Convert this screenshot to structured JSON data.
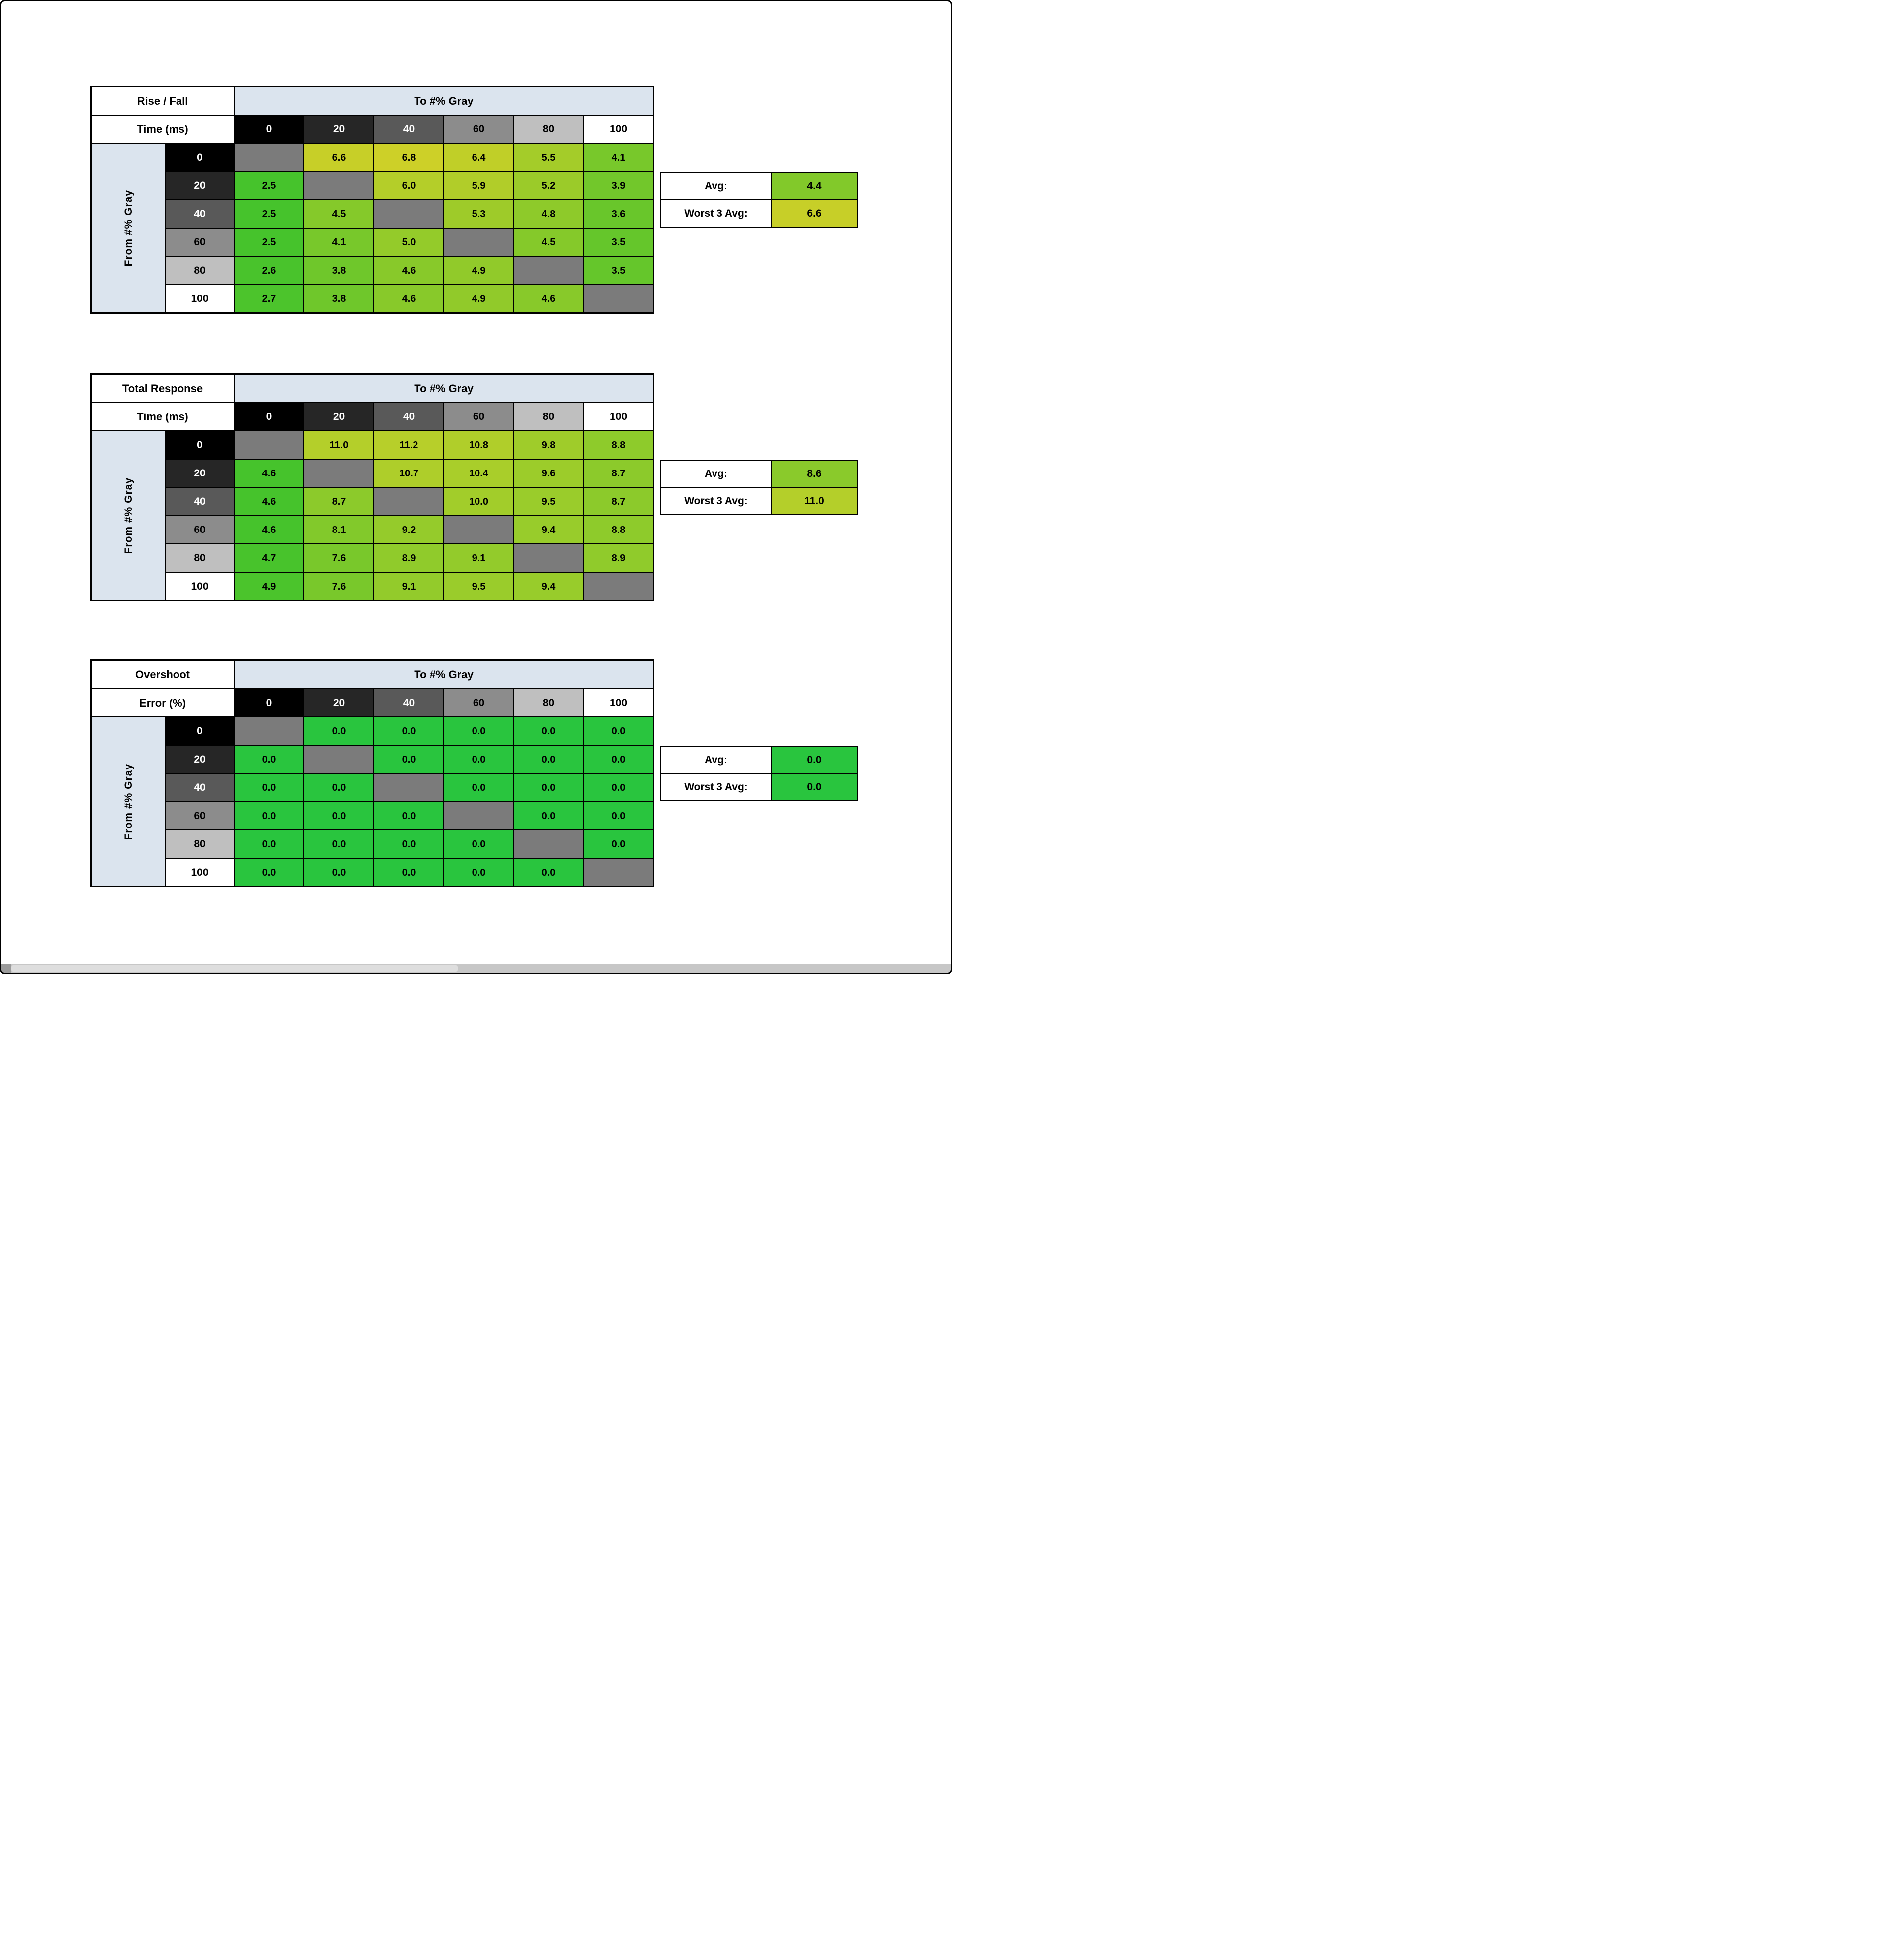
{
  "style": {
    "page_bg": "#ffffff",
    "grid_color": "#000000",
    "band_bg": "#dbe4ee",
    "diagonal_bg": "#7b7b7b",
    "level_colors": [
      "#000000",
      "#262626",
      "#595959",
      "#8c8c8c",
      "#bfbfbf",
      "#ffffff"
    ],
    "level_text_colors": [
      "#ffffff",
      "#ffffff",
      "#ffffff",
      "#000000",
      "#000000",
      "#000000"
    ]
  },
  "chart_data": [
    {
      "type": "heatmap",
      "title": [
        "Rise / Fall",
        "Time (ms)"
      ],
      "col_axis_label": "To #% Gray",
      "row_axis_label": "From #% Gray",
      "columns": [
        "0",
        "20",
        "40",
        "60",
        "80",
        "100"
      ],
      "rows": [
        "0",
        "20",
        "40",
        "60",
        "80",
        "100"
      ],
      "values": [
        [
          null,
          "6.6",
          "6.8",
          "6.4",
          "5.5",
          "4.1"
        ],
        [
          "2.5",
          null,
          "6.0",
          "5.9",
          "5.2",
          "3.9"
        ],
        [
          "2.5",
          "4.5",
          null,
          "5.3",
          "4.8",
          "3.6"
        ],
        [
          "2.5",
          "4.1",
          "5.0",
          null,
          "4.5",
          "3.5"
        ],
        [
          "2.6",
          "3.8",
          "4.6",
          "4.9",
          null,
          "3.5"
        ],
        [
          "2.7",
          "3.8",
          "4.6",
          "4.9",
          "4.6",
          null
        ]
      ],
      "avg_label": "Avg:",
      "avg": "4.4",
      "worst3_label": "Worst 3 Avg:",
      "worst3": "6.6",
      "color_scale": {
        "min": 2.5,
        "max": 6.8,
        "from": "#46c32c",
        "to": "#cdd028"
      }
    },
    {
      "type": "heatmap",
      "title": [
        "Total Response",
        "Time (ms)"
      ],
      "col_axis_label": "To #% Gray",
      "row_axis_label": "From #% Gray",
      "columns": [
        "0",
        "20",
        "40",
        "60",
        "80",
        "100"
      ],
      "rows": [
        "0",
        "20",
        "40",
        "60",
        "80",
        "100"
      ],
      "values": [
        [
          null,
          "11.0",
          "11.2",
          "10.8",
          "9.8",
          "8.8"
        ],
        [
          "4.6",
          null,
          "10.7",
          "10.4",
          "9.6",
          "8.7"
        ],
        [
          "4.6",
          "8.7",
          null,
          "10.0",
          "9.5",
          "8.7"
        ],
        [
          "4.6",
          "8.1",
          "9.2",
          null,
          "9.4",
          "8.8"
        ],
        [
          "4.7",
          "7.6",
          "8.9",
          "9.1",
          null,
          "8.9"
        ],
        [
          "4.9",
          "7.6",
          "9.1",
          "9.5",
          "9.4",
          null
        ]
      ],
      "avg_label": "Avg:",
      "avg": "8.6",
      "worst3_label": "Worst 3 Avg:",
      "worst3": "11.0",
      "color_scale": {
        "min": 4.6,
        "max": 11.2,
        "from": "#46c32c",
        "to": "#b7cf2a"
      }
    },
    {
      "type": "heatmap",
      "title": [
        "Overshoot",
        "Error (%)"
      ],
      "col_axis_label": "To #% Gray",
      "row_axis_label": "From #% Gray",
      "columns": [
        "0",
        "20",
        "40",
        "60",
        "80",
        "100"
      ],
      "rows": [
        "0",
        "20",
        "40",
        "60",
        "80",
        "100"
      ],
      "values": [
        [
          null,
          "0.0",
          "0.0",
          "0.0",
          "0.0",
          "0.0"
        ],
        [
          "0.0",
          null,
          "0.0",
          "0.0",
          "0.0",
          "0.0"
        ],
        [
          "0.0",
          "0.0",
          null,
          "0.0",
          "0.0",
          "0.0"
        ],
        [
          "0.0",
          "0.0",
          "0.0",
          null,
          "0.0",
          "0.0"
        ],
        [
          "0.0",
          "0.0",
          "0.0",
          "0.0",
          null,
          "0.0"
        ],
        [
          "0.0",
          "0.0",
          "0.0",
          "0.0",
          "0.0",
          null
        ]
      ],
      "avg_label": "Avg:",
      "avg": "0.0",
      "worst3_label": "Worst 3 Avg:",
      "worst3": "0.0",
      "color_scale": {
        "min": 0,
        "max": 0,
        "from": "#29c53e",
        "to": "#29c53e"
      }
    }
  ]
}
